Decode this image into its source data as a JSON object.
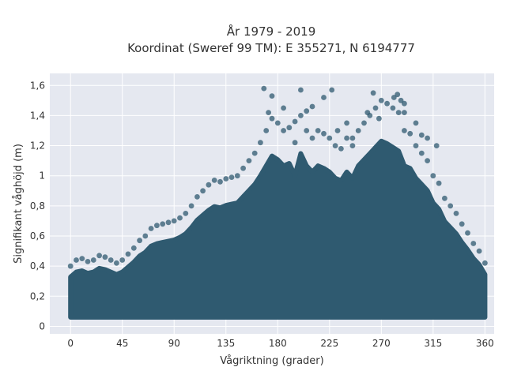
{
  "chart_data": {
    "type": "scatter",
    "title": "År 1979 - 2019",
    "subtitle": "Koordinat (Sweref 99 TM): E 355271, N 6194777",
    "xlabel": "Vågriktning (grader)",
    "ylabel": "Signifikant våghöjd (m)",
    "xlim": [
      -18,
      368
    ],
    "ylim": [
      -0.05,
      1.68
    ],
    "x_ticks": [
      0,
      45,
      90,
      135,
      180,
      225,
      270,
      315,
      360
    ],
    "x_tick_labels": [
      "0",
      "45",
      "90",
      "135",
      "180",
      "225",
      "270",
      "315",
      "360"
    ],
    "y_ticks": [
      0,
      0.2,
      0.4,
      0.6,
      0.8,
      1.0,
      1.2,
      1.4,
      1.6
    ],
    "y_tick_labels": [
      "0",
      "0,2",
      "0,4",
      "0,6",
      "0,8",
      "1",
      "1,2",
      "1,4",
      "1,6"
    ],
    "grid": true,
    "marker_color": "#2f5a70",
    "background_color": "#e5e8f0",
    "series": [
      {
        "points": [
          [
            0,
            0.4
          ],
          [
            5,
            0.44
          ],
          [
            10,
            0.45
          ],
          [
            15,
            0.43
          ],
          [
            20,
            0.44
          ],
          [
            25,
            0.47
          ],
          [
            30,
            0.46
          ],
          [
            35,
            0.44
          ],
          [
            40,
            0.42
          ],
          [
            45,
            0.44
          ],
          [
            50,
            0.48
          ],
          [
            55,
            0.52
          ],
          [
            60,
            0.57
          ],
          [
            65,
            0.6
          ],
          [
            70,
            0.65
          ],
          [
            75,
            0.67
          ],
          [
            80,
            0.68
          ],
          [
            85,
            0.69
          ],
          [
            90,
            0.7
          ],
          [
            95,
            0.72
          ],
          [
            100,
            0.75
          ],
          [
            105,
            0.8
          ],
          [
            110,
            0.86
          ],
          [
            115,
            0.9
          ],
          [
            120,
            0.94
          ],
          [
            125,
            0.97
          ],
          [
            130,
            0.96
          ],
          [
            135,
            0.98
          ],
          [
            140,
            0.99
          ],
          [
            145,
            1.0
          ],
          [
            150,
            1.05
          ],
          [
            155,
            1.1
          ],
          [
            160,
            1.15
          ],
          [
            165,
            1.22
          ],
          [
            170,
            1.3
          ],
          [
            175,
            1.38
          ],
          [
            180,
            1.35
          ],
          [
            185,
            1.3
          ],
          [
            190,
            1.32
          ],
          [
            195,
            1.36
          ],
          [
            200,
            1.4
          ],
          [
            205,
            1.3
          ],
          [
            210,
            1.25
          ],
          [
            215,
            1.3
          ],
          [
            220,
            1.28
          ],
          [
            225,
            1.25
          ],
          [
            230,
            1.2
          ],
          [
            235,
            1.18
          ],
          [
            240,
            1.25
          ],
          [
            245,
            1.2
          ],
          [
            250,
            1.3
          ],
          [
            255,
            1.35
          ],
          [
            260,
            1.4
          ],
          [
            265,
            1.45
          ],
          [
            270,
            1.5
          ],
          [
            275,
            1.48
          ],
          [
            280,
            1.45
          ],
          [
            285,
            1.42
          ],
          [
            290,
            1.3
          ],
          [
            295,
            1.28
          ],
          [
            300,
            1.2
          ],
          [
            305,
            1.15
          ],
          [
            310,
            1.1
          ],
          [
            315,
            1.0
          ],
          [
            320,
            0.95
          ],
          [
            325,
            0.85
          ],
          [
            330,
            0.8
          ],
          [
            335,
            0.75
          ],
          [
            340,
            0.68
          ],
          [
            345,
            0.62
          ],
          [
            350,
            0.55
          ],
          [
            355,
            0.5
          ],
          [
            360,
            0.42
          ],
          [
            168,
            1.58
          ],
          [
            175,
            1.53
          ],
          [
            200,
            1.57
          ],
          [
            227,
            1.57
          ],
          [
            263,
            1.55
          ],
          [
            281,
            1.52
          ],
          [
            284,
            1.54
          ],
          [
            287,
            1.5
          ],
          [
            290,
            1.48
          ],
          [
            172,
            1.42
          ],
          [
            185,
            1.45
          ],
          [
            205,
            1.43
          ],
          [
            210,
            1.46
          ],
          [
            220,
            1.52
          ],
          [
            240,
            1.35
          ],
          [
            258,
            1.42
          ],
          [
            268,
            1.38
          ],
          [
            290,
            1.42
          ],
          [
            305,
            1.27
          ],
          [
            310,
            1.25
          ],
          [
            318,
            1.2
          ],
          [
            300,
            1.35
          ],
          [
            195,
            1.22
          ],
          [
            232,
            1.3
          ],
          [
            245,
            1.25
          ]
        ]
      }
    ]
  }
}
